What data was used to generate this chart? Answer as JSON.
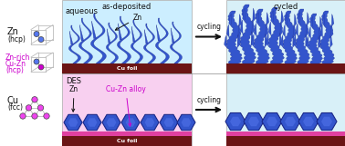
{
  "bg_color": "#ffffff",
  "panel_bg_aqueous": "#cceeff",
  "panel_bg_des": "#f8d0f0",
  "panel_bg_cycled": "#d8f0f8",
  "cu_foil_dark": "#6b1515",
  "cu_foil_pink": "#e040a0",
  "zn_blue": "#3355cc",
  "zn_dark": "#1a2888",
  "zn_mid": "#4466dd",
  "atom_zn_color": "#5577ee",
  "atom_cu_color": "#ee44ee",
  "cube_line_color": "#aaaaaa",
  "title_asdeposited": "as-deposited",
  "title_cycled": "cycled",
  "label_aqueous": "aqueous",
  "label_des": "DES",
  "label_zn": "Zn",
  "label_alloy": "Cu-Zn alloy",
  "label_cycling": "cycling",
  "label_cufoil": "Cu foil",
  "label_zn_top": "Zn",
  "label_zn_bottom": "Zn",
  "left_zn_text": [
    "Zn",
    "(hcp)"
  ],
  "left_zncu_text": [
    "Zn-rich",
    "Cu-Zn",
    "(hcp)"
  ],
  "left_cu_text": [
    "Cu",
    "(fcc)"
  ],
  "figsize": [
    3.78,
    1.61
  ],
  "dpi": 100
}
